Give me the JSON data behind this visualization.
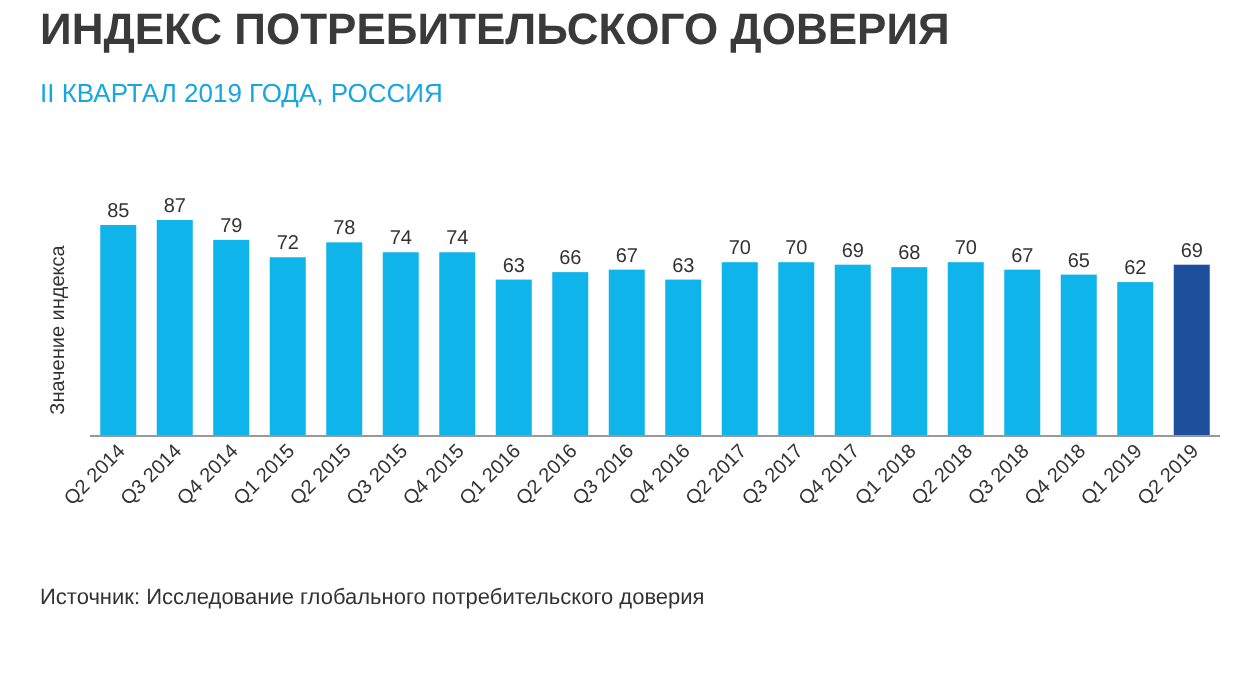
{
  "chart_data": {
    "type": "bar",
    "title": "ИНДЕКС ПОТРЕБИТЕЛЬСКОГО ДОВЕРИЯ",
    "subtitle": "II КВАРТАЛ 2019 ГОДА, РОССИЯ",
    "ylabel": "Значение индекса",
    "categories": [
      "Q2 2014",
      "Q3 2014",
      "Q4 2014",
      "Q1 2015",
      "Q2 2015",
      "Q3 2015",
      "Q4 2015",
      "Q1 2016",
      "Q2 2016",
      "Q3 2016",
      "Q4 2016",
      "Q2 2017",
      "Q3 2017",
      "Q4 2017",
      "Q1 2018",
      "Q2 2018",
      "Q3 2018",
      "Q4 2018",
      "Q1 2019",
      "Q2 2019"
    ],
    "values": [
      85,
      87,
      79,
      72,
      78,
      74,
      74,
      63,
      66,
      67,
      63,
      70,
      70,
      69,
      68,
      70,
      67,
      65,
      62,
      69
    ],
    "colors": [
      "#0fb4ea",
      "#0fb4ea",
      "#0fb4ea",
      "#0fb4ea",
      "#0fb4ea",
      "#0fb4ea",
      "#0fb4ea",
      "#0fb4ea",
      "#0fb4ea",
      "#0fb4ea",
      "#0fb4ea",
      "#0fb4ea",
      "#0fb4ea",
      "#0fb4ea",
      "#0fb4ea",
      "#0fb4ea",
      "#0fb4ea",
      "#0fb4ea",
      "#0fb4ea",
      "#1c4f9c"
    ],
    "data_labels": true,
    "annotations": [
      "Источник: Исследование глобального потребительского доверия"
    ]
  }
}
